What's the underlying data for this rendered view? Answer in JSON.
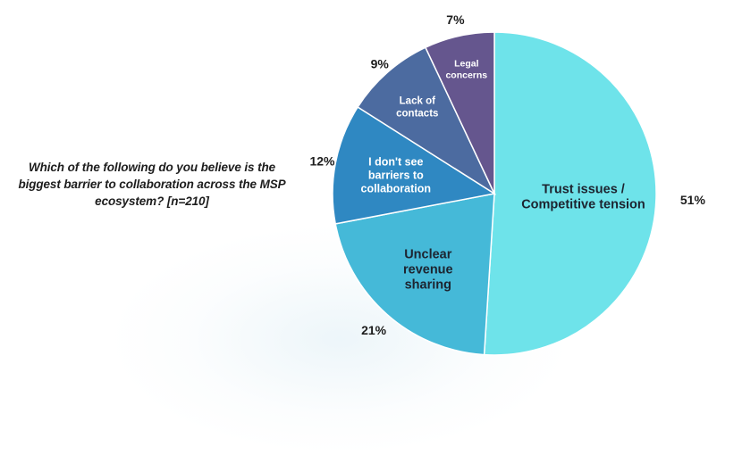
{
  "question": "Which of the following do you believe is the biggest barrier to collaboration across the MSP ecosystem? [n=210]",
  "chart_data": {
    "type": "pie",
    "title": "Which of the following do you believe is the biggest barrier to collaboration across the MSP ecosystem? [n=210]",
    "slices": [
      {
        "label": "Trust issues / Competitive tension",
        "lines": [
          "Trust issues /",
          "Competitive tension"
        ],
        "value": 51,
        "value_label": "51%",
        "color": "#6ee3ea",
        "text_color": "#1d2430"
      },
      {
        "label": "Unclear revenue sharing",
        "lines": [
          "Unclear",
          "revenue",
          "sharing"
        ],
        "value": 21,
        "value_label": "21%",
        "color": "#45b9d8",
        "text_color": "#1d2430"
      },
      {
        "label": "I don't see barriers to collaboration",
        "lines": [
          "I don't see",
          "barriers to",
          "collaboration"
        ],
        "value": 12,
        "value_label": "12%",
        "color": "#2f88c2",
        "text_color": "#ffffff"
      },
      {
        "label": "Lack of contacts",
        "lines": [
          "Lack of",
          "contacts"
        ],
        "value": 9,
        "value_label": "9%",
        "color": "#4c6ba0",
        "text_color": "#ffffff"
      },
      {
        "label": "Legal concerns",
        "lines": [
          "Legal",
          "concerns"
        ],
        "value": 7,
        "value_label": "7%",
        "color": "#65568e",
        "text_color": "#ffffff"
      }
    ],
    "start_angle_deg": 0,
    "direction": "clockwise",
    "legend": "none"
  }
}
